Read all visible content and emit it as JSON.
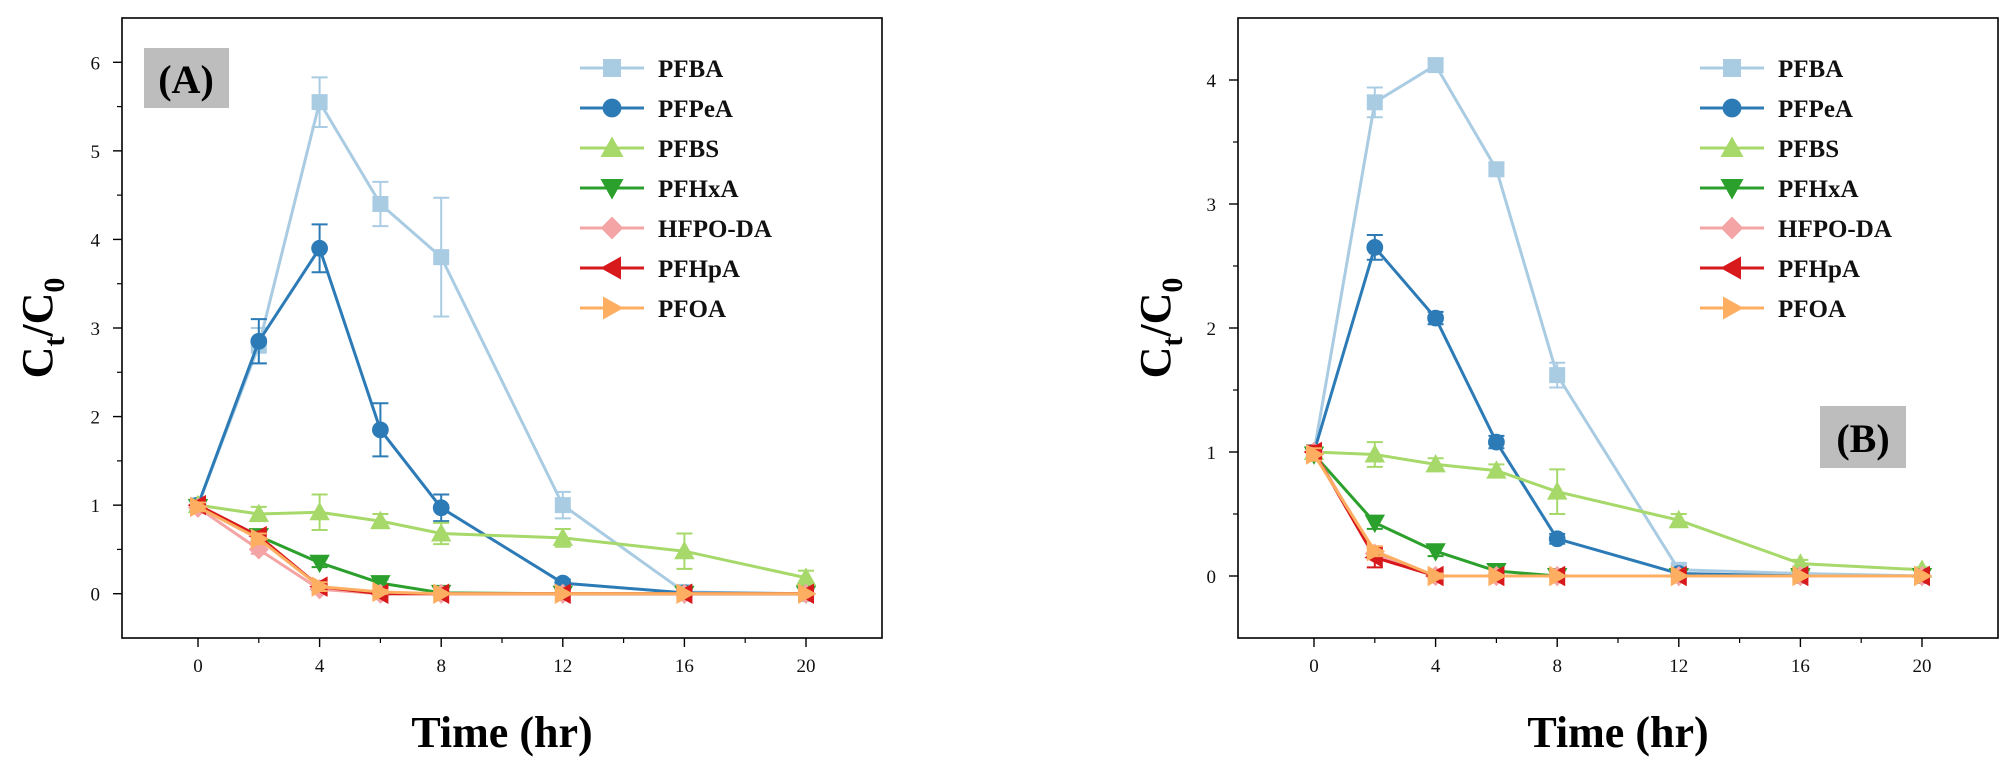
{
  "figure_title": "",
  "chart_data": [
    {
      "type": "line",
      "panel_label": "(A)",
      "xlabel": "Time (hr)",
      "ylabel": {
        "base": "C",
        "num_sub": "t",
        "slash": "/",
        "den_sub": "0"
      },
      "xlim": [
        -2.5,
        22.5
      ],
      "ylim": [
        -0.5,
        6.5
      ],
      "xticks": [
        0,
        4,
        8,
        12,
        16,
        20
      ],
      "yticks": [
        0,
        1,
        2,
        3,
        4,
        5,
        6
      ],
      "x": [
        0,
        2,
        4,
        6,
        8,
        12,
        16,
        20
      ],
      "legend_position": "top-right",
      "series": [
        {
          "name": "PFBA",
          "color": "#a9cce3",
          "marker": "square",
          "values": [
            1.0,
            2.8,
            5.55,
            4.4,
            3.8,
            1.0,
            0.02,
            0.0
          ],
          "errors": [
            0.06,
            0.2,
            0.28,
            0.25,
            0.67,
            0.15,
            0.03,
            0.02
          ]
        },
        {
          "name": "PFPeA",
          "color": "#2c7bb6",
          "marker": "circle",
          "values": [
            1.0,
            2.85,
            3.9,
            1.85,
            0.97,
            0.12,
            0.01,
            0.0
          ],
          "errors": [
            0.06,
            0.25,
            0.27,
            0.3,
            0.15,
            0.04,
            0.02,
            0.02
          ]
        },
        {
          "name": "PFBS",
          "color": "#a6d96a",
          "marker": "triangle-up",
          "values": [
            1.0,
            0.9,
            0.92,
            0.82,
            0.68,
            0.63,
            0.48,
            0.18
          ],
          "errors": [
            0.06,
            0.08,
            0.2,
            0.08,
            0.12,
            0.1,
            0.2,
            0.08
          ]
        },
        {
          "name": "PFHxA",
          "color": "#2ca02c",
          "marker": "triangle-down",
          "values": [
            0.98,
            0.65,
            0.35,
            0.12,
            0.01,
            0.0,
            0.0,
            0.0
          ],
          "errors": [
            0.05,
            0.06,
            0.05,
            0.04,
            0.02,
            0.01,
            0.01,
            0.01
          ]
        },
        {
          "name": "HFPO-DA",
          "color": "#f4a4a4",
          "marker": "diamond",
          "values": [
            0.97,
            0.5,
            0.05,
            0.0,
            0.0,
            0.0,
            0.0,
            0.0
          ],
          "errors": [
            0.05,
            0.05,
            0.04,
            0.02,
            0.01,
            0.01,
            0.01,
            0.01
          ]
        },
        {
          "name": "PFHpA",
          "color": "#d7191c",
          "marker": "triangle-left",
          "values": [
            1.0,
            0.65,
            0.08,
            0.0,
            0.0,
            0.0,
            0.0,
            0.0
          ],
          "errors": [
            0.04,
            0.05,
            0.05,
            0.02,
            0.01,
            0.01,
            0.01,
            0.01
          ]
        },
        {
          "name": "PFOA",
          "color": "#fdae61",
          "marker": "triangle-right",
          "values": [
            0.98,
            0.62,
            0.08,
            0.02,
            0.0,
            0.0,
            0.0,
            0.0
          ],
          "errors": [
            0.05,
            0.06,
            0.05,
            0.02,
            0.01,
            0.01,
            0.01,
            0.01
          ]
        }
      ]
    },
    {
      "type": "line",
      "panel_label": "(B)",
      "xlabel": "Time (hr)",
      "ylabel": {
        "base": "C",
        "num_sub": "t",
        "slash": "/",
        "den_sub": "0"
      },
      "xlim": [
        -2.5,
        22.5
      ],
      "ylim": [
        -0.5,
        4.5
      ],
      "xticks": [
        0,
        4,
        8,
        12,
        16,
        20
      ],
      "yticks": [
        0,
        1,
        2,
        3,
        4
      ],
      "x": [
        0,
        2,
        4,
        6,
        8,
        12,
        16,
        20
      ],
      "legend_position": "top-right",
      "series": [
        {
          "name": "PFBA",
          "color": "#a9cce3",
          "marker": "square",
          "values": [
            1.0,
            3.82,
            4.12,
            3.28,
            1.62,
            0.05,
            0.02,
            0.0
          ],
          "errors": [
            0.05,
            0.12,
            0.05,
            0.05,
            0.1,
            0.02,
            0.02,
            0.01
          ]
        },
        {
          "name": "PFPeA",
          "color": "#2c7bb6",
          "marker": "circle",
          "values": [
            1.0,
            2.65,
            2.08,
            1.08,
            0.3,
            0.02,
            0.0,
            0.0
          ],
          "errors": [
            0.05,
            0.1,
            0.05,
            0.05,
            0.04,
            0.01,
            0.01,
            0.01
          ]
        },
        {
          "name": "PFBS",
          "color": "#a6d96a",
          "marker": "triangle-up",
          "values": [
            1.0,
            0.98,
            0.9,
            0.85,
            0.68,
            0.45,
            0.1,
            0.05
          ],
          "errors": [
            0.05,
            0.1,
            0.05,
            0.05,
            0.18,
            0.05,
            0.03,
            0.02
          ]
        },
        {
          "name": "PFHxA",
          "color": "#2ca02c",
          "marker": "triangle-down",
          "values": [
            0.98,
            0.43,
            0.2,
            0.04,
            0.0,
            0.0,
            0.0,
            0.0
          ],
          "errors": [
            0.05,
            0.05,
            0.04,
            0.02,
            0.01,
            0.01,
            0.01,
            0.01
          ]
        },
        {
          "name": "HFPO-DA",
          "color": "#f4a4a4",
          "marker": "diamond",
          "values": [
            1.0,
            0.18,
            0.0,
            0.0,
            0.0,
            0.0,
            0.0,
            0.0
          ],
          "errors": [
            0.05,
            0.04,
            0.02,
            0.01,
            0.01,
            0.01,
            0.01,
            0.01
          ]
        },
        {
          "name": "PFHpA",
          "color": "#d7191c",
          "marker": "triangle-left",
          "values": [
            1.0,
            0.15,
            0.0,
            0.0,
            0.0,
            0.0,
            0.0,
            0.0
          ],
          "errors": [
            0.05,
            0.08,
            0.02,
            0.01,
            0.01,
            0.01,
            0.01,
            0.01
          ]
        },
        {
          "name": "PFOA",
          "color": "#fdae61",
          "marker": "triangle-right",
          "values": [
            0.98,
            0.2,
            0.0,
            0.0,
            0.0,
            0.0,
            0.0,
            0.0
          ],
          "errors": [
            0.05,
            0.04,
            0.02,
            0.01,
            0.01,
            0.01,
            0.01,
            0.01
          ]
        }
      ]
    }
  ]
}
